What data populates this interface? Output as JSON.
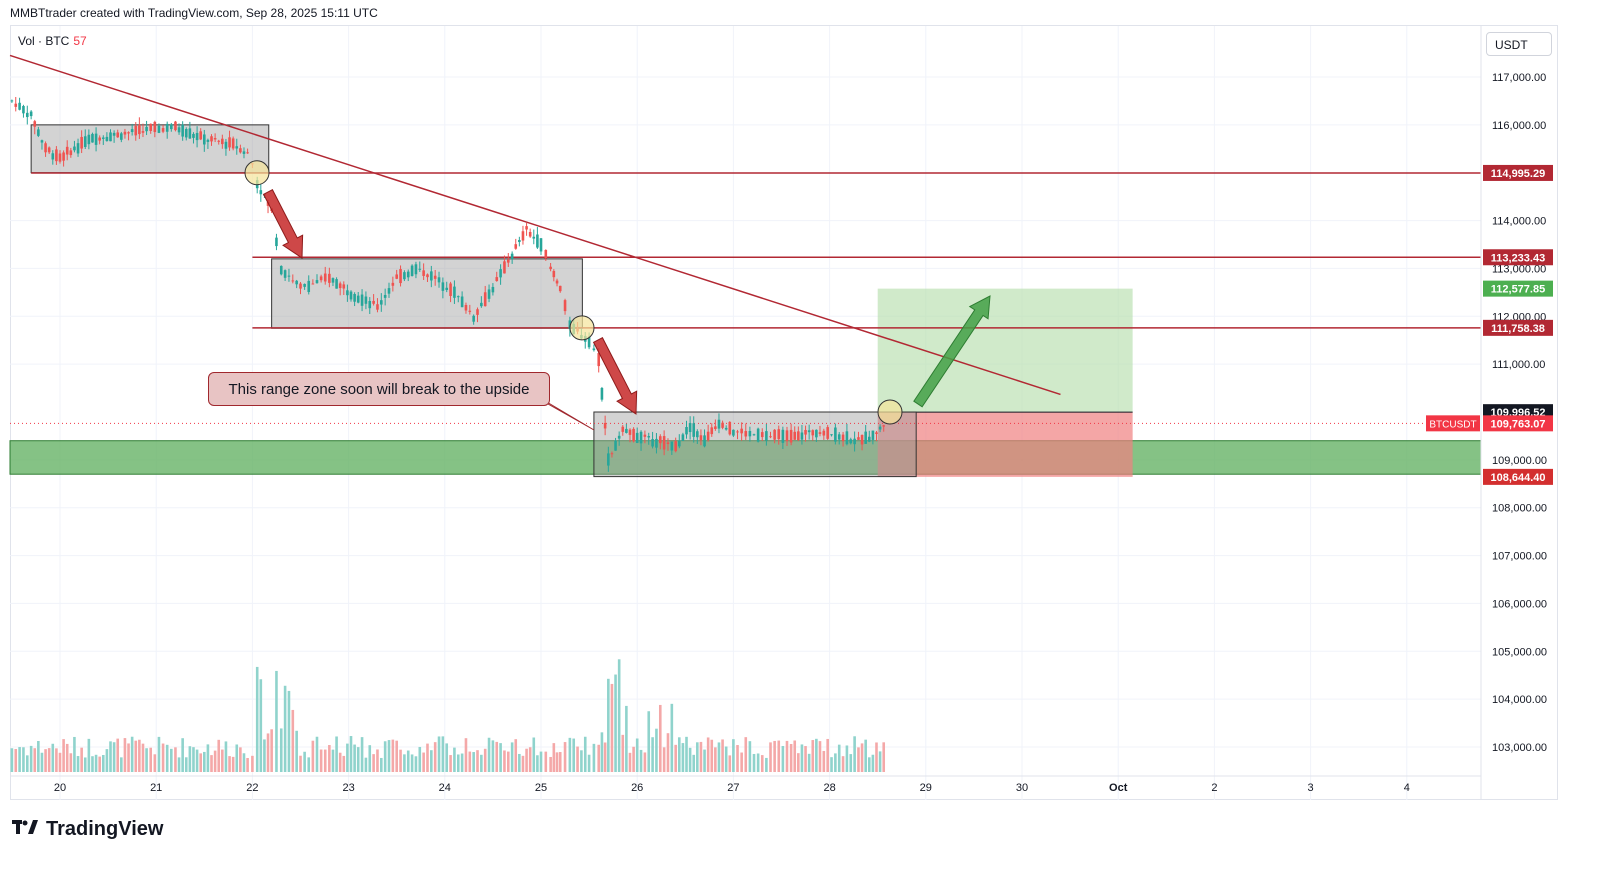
{
  "header": {
    "text": "MMBTtrader created with TradingView.com, Sep 28, 2025 15:11 UTC"
  },
  "indicator": {
    "label": "Vol · BTC",
    "value": "57"
  },
  "currency": "USDT",
  "brand": {
    "name": "TradingView",
    "logo": "tradingview-logo"
  },
  "annotation": {
    "text": "This range zone soon will break to the upside"
  },
  "symbol_tag": "BTCUSDT",
  "colors": {
    "up": "#26a69a",
    "down": "#ef5350",
    "vol_up": "#8fd3cc",
    "vol_down": "#f4a8a8",
    "trendline": "#b22833",
    "zone_green": "#66b366",
    "target_fill": "#b7dfae",
    "stop_fill": "#f08080"
  },
  "chart_data": {
    "type": "candlestick",
    "x_ticks": [
      "20",
      "21",
      "22",
      "23",
      "24",
      "25",
      "26",
      "27",
      "28",
      "29",
      "30",
      "Oct",
      "2",
      "3",
      "4"
    ],
    "y_ticks": [
      "117,000.00",
      "116,000.00",
      "114,000.00",
      "113,000.00",
      "112,000.00",
      "111,000.00",
      "109,000.00",
      "108,000.00",
      "107,000.00",
      "106,000.00",
      "105,000.00",
      "104,000.00",
      "103,000.00"
    ],
    "ylim": [
      102500,
      117700
    ],
    "price_labels": [
      {
        "value": "114,995.29",
        "color": "#b22833"
      },
      {
        "value": "113,233.43",
        "color": "#b22833"
      },
      {
        "value": "112,577.85",
        "color": "#4caf50"
      },
      {
        "value": "111,758.38",
        "color": "#b22833"
      },
      {
        "value": "109,996.52",
        "color": "#131722"
      },
      {
        "value": "109,763.07",
        "color": "#f23645"
      },
      {
        "value": "108,644.40",
        "color": "#d32f2f"
      }
    ],
    "horizontal_levels": [
      114995.29,
      113233.43,
      111758.38
    ],
    "support_zone": [
      108700,
      109400
    ],
    "range_boxes": [
      {
        "from": "Sep 19",
        "to": "Sep 22",
        "low": 115000,
        "high": 116000
      },
      {
        "from": "Sep 22",
        "to": "Sep 25",
        "low": 111750,
        "high": 113200
      },
      {
        "from": "Sep 25",
        "to": "Sep 28",
        "low": 108650,
        "high": 110000
      }
    ],
    "trade_box": {
      "entry": 109996.52,
      "target": 112577.85,
      "stop": 108644.4
    },
    "trendline": {
      "from_price": 117200,
      "to_price": 110200
    },
    "close": 109763.07
  }
}
